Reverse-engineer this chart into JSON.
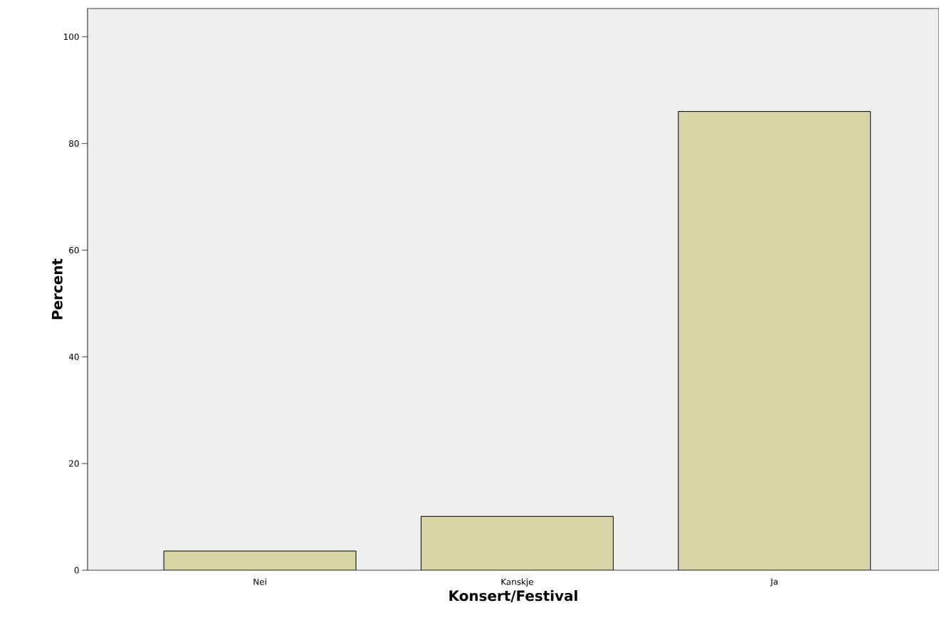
{
  "chart_data": {
    "type": "bar",
    "xlabel": "Konsert/Festival",
    "ylabel": "Percent",
    "categories": [
      "Nei",
      "Kanskje",
      "Ja"
    ],
    "values": [
      3.6,
      10.1,
      86.0
    ],
    "color": "#d6d3a6",
    "ylim": [
      0,
      105.3
    ],
    "yticks": [
      0,
      20,
      40,
      60,
      80,
      100
    ],
    "grid": false
  }
}
